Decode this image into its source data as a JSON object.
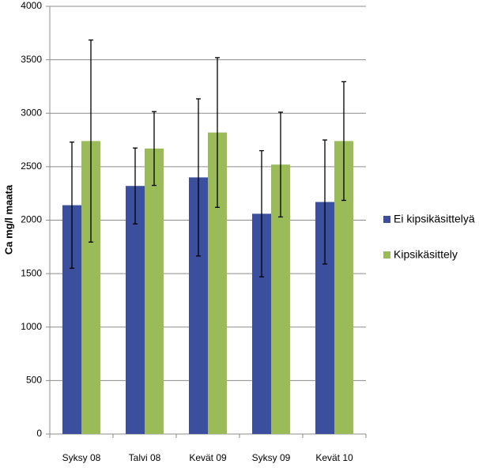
{
  "chart_data": {
    "type": "bar",
    "ylabel": "Ca mg/l maata",
    "categories": [
      "Syksy 08",
      "Talvi 08",
      "Kevät 09",
      "Syksy 09",
      "Kevät 10"
    ],
    "series": [
      {
        "name": "Ei kipsikäsittelyä",
        "color": "#3c4f9e",
        "values": [
          2140,
          2320,
          2400,
          2060,
          2170
        ],
        "errors": [
          590,
          355,
          735,
          590,
          580
        ]
      },
      {
        "name": "Kipsikäsittely",
        "color": "#9bbb59",
        "values": [
          2740,
          2670,
          2820,
          2520,
          2740
        ],
        "errors": [
          945,
          345,
          700,
          490,
          555
        ]
      }
    ],
    "ylim": [
      0,
      4000
    ],
    "yticks": [
      0,
      500,
      1000,
      1500,
      2000,
      2500,
      3000,
      3500,
      4000
    ],
    "grid": true,
    "legend": "right"
  }
}
